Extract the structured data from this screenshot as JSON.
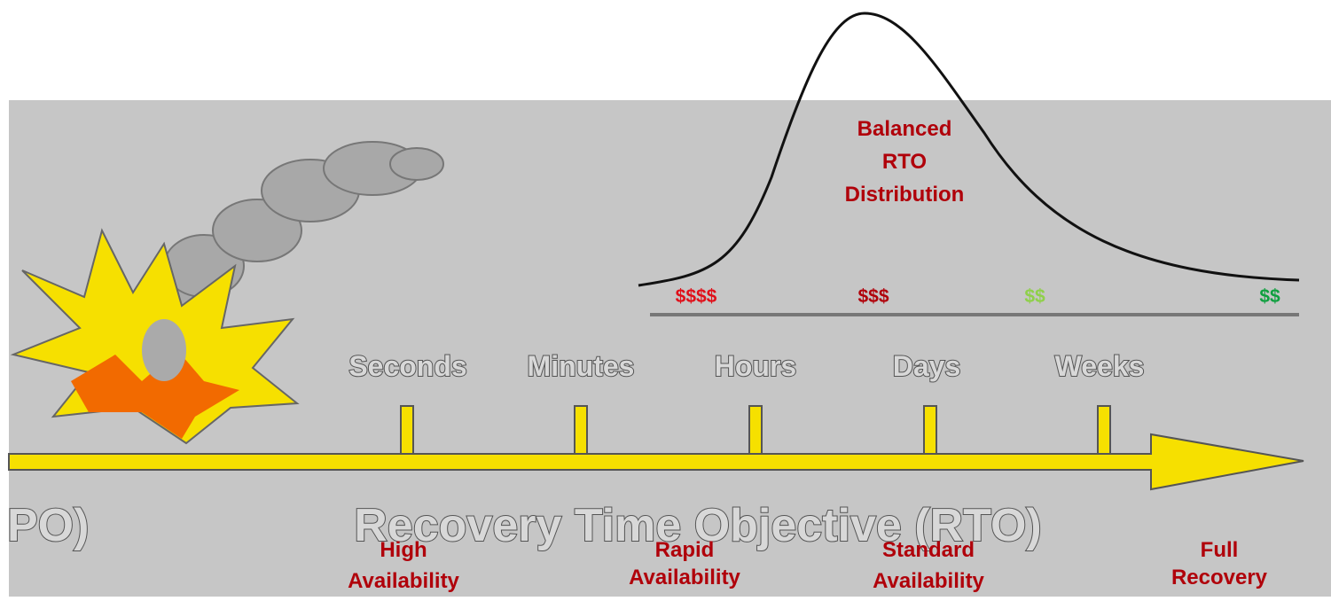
{
  "curve_label": [
    "Balanced",
    "RTO",
    "Distribution"
  ],
  "costs": [
    "$$$$",
    "$$$",
    "$$",
    "$$"
  ],
  "time_scale": [
    "Seconds",
    "Minutes",
    "Hours",
    "Days",
    "Weeks"
  ],
  "axis_left_fragment": "PO)",
  "axis_title": "Recovery Time Objective (RTO)",
  "tiers": [
    [
      "High",
      "Availability"
    ],
    [
      "Rapid",
      "Availability"
    ],
    [
      "Standard",
      "Availability"
    ],
    [
      "Full",
      "Recovery"
    ]
  ]
}
